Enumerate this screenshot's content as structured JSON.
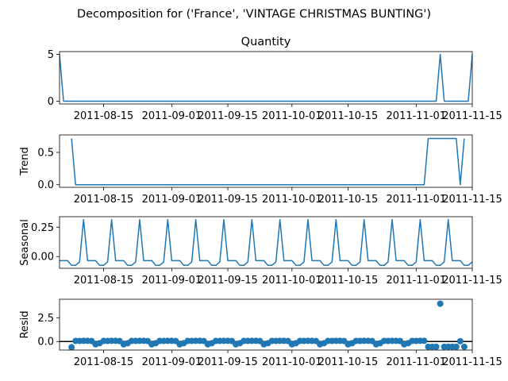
{
  "figure": {
    "suptitle": "Decomposition for ('France', 'VINTAGE CHRISTMAS BUNTING')"
  },
  "chart_data": [
    {
      "type": "line",
      "title": "Quantity",
      "ylabel": "",
      "x_start": "2011-08-04",
      "x_end": "2011-11-15",
      "xticks": [
        "2011-08-15",
        "2011-09-01",
        "2011-09-15",
        "2011-10-01",
        "2011-10-15",
        "2011-11-01",
        "2011-11-15"
      ],
      "yticks": [
        0,
        5
      ],
      "ylim": [
        -0.3,
        5.3
      ],
      "series": [
        {
          "color": "#1f77b4",
          "points": [
            [
              "2011-08-04",
              5
            ],
            [
              "2011-08-05",
              0
            ],
            [
              "2011-11-06",
              0
            ],
            [
              "2011-11-07",
              5
            ],
            [
              "2011-11-08",
              0
            ],
            [
              "2011-11-14",
              0
            ],
            [
              "2011-11-15",
              5
            ]
          ]
        }
      ]
    },
    {
      "type": "line",
      "title": "",
      "ylabel": "Trend",
      "x_start": "2011-08-04",
      "x_end": "2011-11-15",
      "xticks": [
        "2011-08-15",
        "2011-09-01",
        "2011-09-15",
        "2011-10-01",
        "2011-10-15",
        "2011-11-01",
        "2011-11-15"
      ],
      "yticks": [
        0.0,
        0.5
      ],
      "ylim": [
        -0.04,
        0.77
      ],
      "series": [
        {
          "color": "#1f77b4",
          "points": [
            [
              "2011-08-07",
              0.714
            ],
            [
              "2011-08-08",
              0.0
            ],
            [
              "2011-11-03",
              0.0
            ],
            [
              "2011-11-04",
              0.714
            ],
            [
              "2011-11-11",
              0.714
            ],
            [
              "2011-11-12",
              0.0
            ],
            [
              "2011-11-13",
              0.714
            ]
          ]
        }
      ]
    },
    {
      "type": "line",
      "title": "",
      "ylabel": "Seasonal",
      "x_start": "2011-08-04",
      "x_end": "2011-11-15",
      "xticks": [
        "2011-08-15",
        "2011-09-01",
        "2011-09-15",
        "2011-10-01",
        "2011-10-15",
        "2011-11-01",
        "2011-11-15"
      ],
      "yticks": [
        0.0,
        0.25
      ],
      "ylim": [
        -0.1,
        0.34
      ],
      "weekly_pattern": [
        -0.035,
        -0.035,
        -0.035,
        -0.075,
        -0.075,
        -0.045,
        0.315
      ],
      "series": [
        {
          "color": "#1f77b4",
          "pattern_start": "2011-08-04"
        }
      ]
    },
    {
      "type": "scatter",
      "title": "",
      "ylabel": "Resid",
      "x_start": "2011-08-04",
      "x_end": "2011-11-15",
      "xticks": [
        "2011-08-15",
        "2011-09-01",
        "2011-09-15",
        "2011-10-01",
        "2011-10-15",
        "2011-11-01",
        "2011-11-15"
      ],
      "yticks": [
        0.0,
        2.5
      ],
      "ylim": [
        -0.9,
        4.45
      ],
      "zero_line": true,
      "series": [
        {
          "color": "#1f77b4",
          "start": "2011-08-07",
          "end": "2011-11-13",
          "base_pattern": [
            -0.18,
            0.06,
            0.06,
            0.07,
            0.07,
            0.05,
            -0.3
          ],
          "overrides": [
            [
              "2011-08-07",
              -0.6
            ],
            [
              "2011-11-04",
              -0.55
            ],
            [
              "2011-11-05",
              -0.55
            ],
            [
              "2011-11-06",
              -0.55
            ],
            [
              "2011-11-07",
              3.98
            ],
            [
              "2011-11-08",
              -0.55
            ],
            [
              "2011-11-09",
              -0.55
            ],
            [
              "2011-11-10",
              -0.55
            ],
            [
              "2011-11-11",
              -0.55
            ],
            [
              "2011-11-12",
              0.03
            ],
            [
              "2011-11-13",
              -0.55
            ]
          ]
        }
      ]
    }
  ]
}
